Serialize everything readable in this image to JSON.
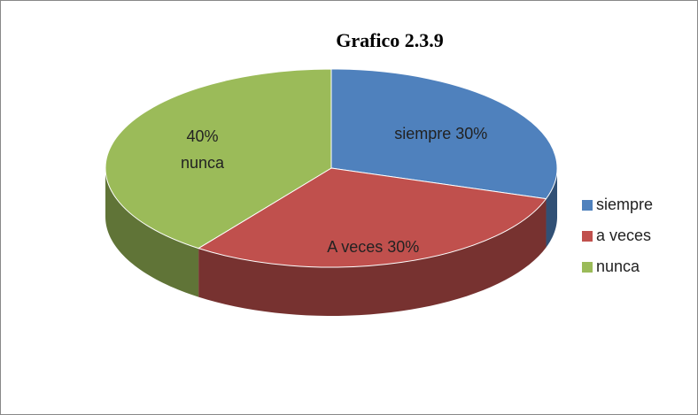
{
  "chart_data": {
    "type": "pie",
    "title": "Grafico 2.3.9",
    "categories": [
      "siempre",
      "a veces",
      "nunca"
    ],
    "values": [
      30,
      30,
      40
    ],
    "value_labels": [
      "siempre 30%",
      "A veces 30%",
      "40%\nnunca"
    ],
    "colors": [
      "#4f81bd",
      "#c0504d",
      "#9bbb59"
    ],
    "legend": "right"
  }
}
